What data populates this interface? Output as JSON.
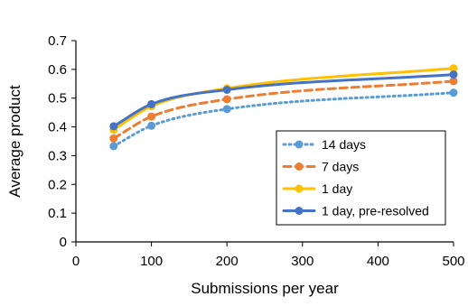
{
  "chart_data": {
    "type": "line",
    "title": "",
    "xlabel": "Submissions per year",
    "ylabel": "Average product",
    "xlim": [
      0,
      500
    ],
    "ylim": [
      0,
      0.7
    ],
    "xticks": [
      0,
      100,
      200,
      300,
      400,
      500
    ],
    "yticks": [
      0,
      0.1,
      0.2,
      0.3,
      0.4,
      0.5,
      0.6,
      0.7
    ],
    "xtick_labels": [
      "0",
      "100",
      "200",
      "300",
      "400",
      "500"
    ],
    "ytick_labels": [
      "0",
      "0.1",
      "0.2",
      "0.3",
      "0.4",
      "0.5",
      "0.6",
      "0.7"
    ],
    "grid": false,
    "legend_position": "bottom-right",
    "series": [
      {
        "name": "14 days",
        "color": "#5b9bd5",
        "line_style": "dotted",
        "x": [
          50,
          100,
          200,
          500
        ],
        "y": [
          0.333,
          0.404,
          0.462,
          0.519
        ]
      },
      {
        "name": "7 days",
        "color": "#ed7d31",
        "line_style": "dashed",
        "x": [
          50,
          100,
          200,
          500
        ],
        "y": [
          0.36,
          0.436,
          0.496,
          0.559
        ]
      },
      {
        "name": "1 day",
        "color": "#ffc000",
        "line_style": "solid",
        "x": [
          50,
          100,
          200,
          500
        ],
        "y": [
          0.39,
          0.472,
          0.534,
          0.604
        ]
      },
      {
        "name": "1 day, pre-resolved",
        "color": "#4472c4",
        "line_style": "solid",
        "x": [
          50,
          100,
          200,
          500
        ],
        "y": [
          0.402,
          0.479,
          0.529,
          0.582
        ]
      }
    ]
  }
}
